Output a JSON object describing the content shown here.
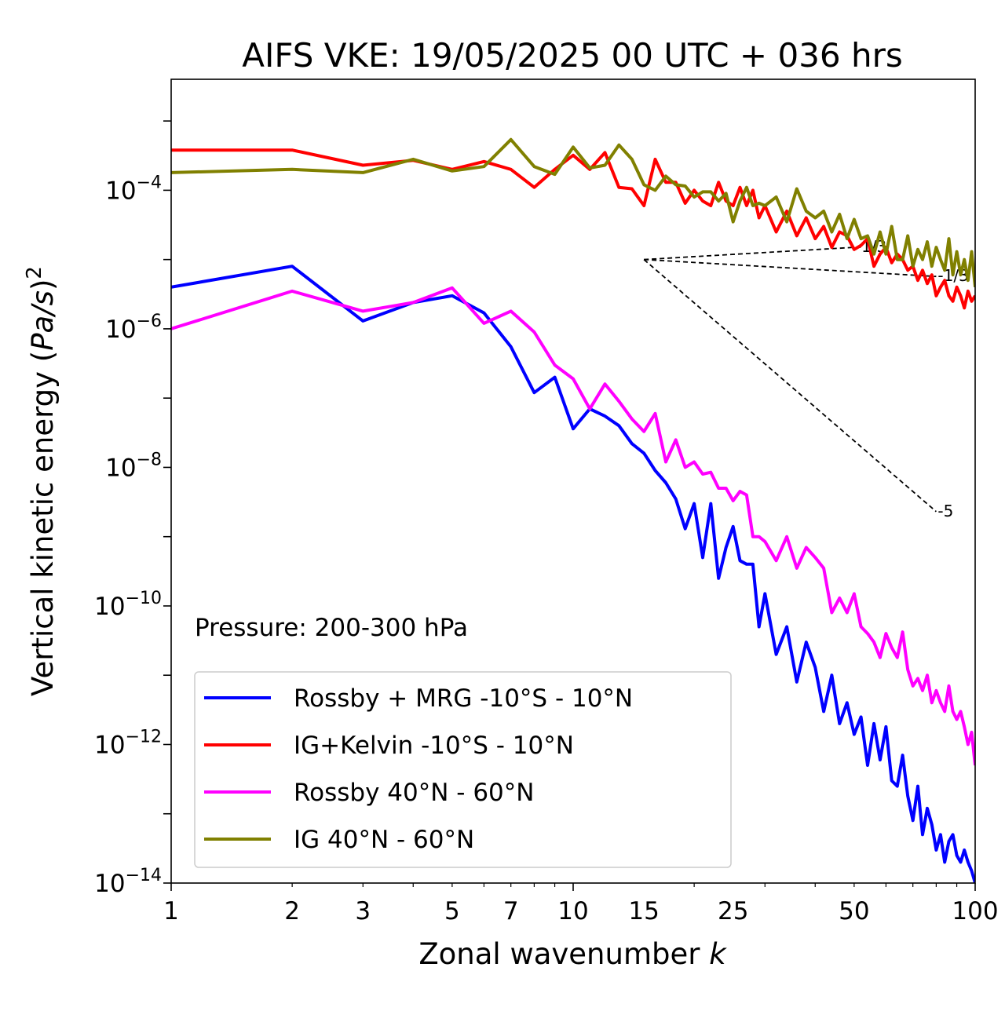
{
  "chart_data": {
    "type": "line",
    "title": "AIFS VKE: 19/05/2025 00 UTC + 036 hrs",
    "xlabel": "Zonal wavenumber k",
    "ylabel": "Vertical kinetic energy (Pa/s)²",
    "xscale": "log",
    "yscale": "log",
    "xlim": [
      1,
      100
    ],
    "ylim": [
      1e-14,
      0.004
    ],
    "xticks": [
      {
        "value": 1,
        "label": "1"
      },
      {
        "value": 2,
        "label": "2"
      },
      {
        "value": 3,
        "label": "3"
      },
      {
        "value": 5,
        "label": "5"
      },
      {
        "value": 7,
        "label": "7"
      },
      {
        "value": 10,
        "label": "10"
      },
      {
        "value": 15,
        "label": "15"
      },
      {
        "value": 25,
        "label": "25"
      },
      {
        "value": 50,
        "label": "50"
      },
      {
        "value": 100,
        "label": "100"
      }
    ],
    "yticks": [
      {
        "value": -4,
        "base": "10",
        "exp": "−4"
      },
      {
        "value": -6,
        "base": "10",
        "exp": "−6"
      },
      {
        "value": -8,
        "base": "10",
        "exp": "−8"
      },
      {
        "value": -10,
        "base": "10",
        "exp": "−10"
      },
      {
        "value": -12,
        "base": "10",
        "exp": "−12"
      },
      {
        "value": -14,
        "base": "10",
        "exp": "−14"
      }
    ],
    "annotation": "Pressure: 200-300 hPa",
    "legend_position": "lower-left",
    "reference_lines": [
      {
        "label": "-1/3",
        "x": [
          15,
          50
        ],
        "y": [
          1e-05,
          1.5e-05
        ]
      },
      {
        "label": "-1/3",
        "x": [
          15,
          80
        ],
        "y": [
          1e-05,
          5.7e-06
        ]
      },
      {
        "label": "-5",
        "x": [
          15,
          80
        ],
        "y": [
          1e-05,
          2.3e-09
        ]
      }
    ],
    "series": [
      {
        "name": "Rossby + MRG -10°S - 10°N",
        "color": "#0000ff",
        "x": [
          1,
          2,
          3,
          4,
          5,
          6,
          7,
          8,
          9,
          10,
          11,
          12,
          13,
          14,
          15,
          16,
          17,
          18,
          19,
          20,
          21,
          22,
          23,
          24,
          25,
          26,
          27,
          28,
          29,
          30,
          32,
          34,
          36,
          38,
          40,
          42,
          44,
          46,
          48,
          50,
          52,
          54,
          56,
          58,
          60,
          62,
          64,
          66,
          68,
          70,
          72,
          74,
          76,
          78,
          80,
          82,
          84,
          86,
          88,
          90,
          92,
          94,
          96,
          98,
          100
        ],
        "y": [
          4e-06,
          8e-06,
          1.3e-06,
          2.4e-06,
          3e-06,
          1.7e-06,
          5.5e-07,
          1.2e-07,
          2e-07,
          3.6e-08,
          7e-08,
          5.5e-08,
          4e-08,
          2.2e-08,
          1.6e-08,
          9e-09,
          6e-09,
          3.5e-09,
          1.3e-09,
          3e-09,
          5e-10,
          3e-09,
          2.5e-10,
          7e-10,
          1.4e-09,
          4.5e-10,
          4e-10,
          4e-10,
          5e-11,
          1.5e-10,
          2e-11,
          5e-11,
          8e-12,
          3e-11,
          1.3e-11,
          3e-12,
          1e-11,
          2e-12,
          4e-12,
          1.4e-12,
          2.5e-12,
          5e-13,
          2e-12,
          6e-13,
          1.8e-12,
          3e-13,
          2.5e-13,
          7e-13,
          1.8e-13,
          8e-14,
          2.5e-13,
          5e-14,
          1.2e-13,
          7e-14,
          3e-14,
          5e-14,
          2e-14,
          4e-14,
          5e-14,
          2.5e-14,
          2e-14,
          3e-14,
          2e-14,
          1.5e-14,
          1e-14
        ]
      },
      {
        "name": "IG+Kelvin -10°S - 10°N",
        "color": "#ff0000",
        "x": [
          1,
          2,
          3,
          4,
          5,
          6,
          7,
          8,
          9,
          10,
          11,
          12,
          13,
          14,
          15,
          16,
          17,
          18,
          19,
          20,
          21,
          22,
          23,
          24,
          25,
          26,
          27,
          28,
          29,
          30,
          32,
          34,
          36,
          38,
          40,
          42,
          44,
          46,
          48,
          50,
          52,
          54,
          56,
          58,
          60,
          62,
          64,
          66,
          68,
          70,
          72,
          74,
          76,
          78,
          80,
          82,
          84,
          86,
          88,
          90,
          92,
          94,
          96,
          98,
          100
        ],
        "y": [
          0.00038,
          0.00038,
          0.00023,
          0.00027,
          0.0002,
          0.00026,
          0.0002,
          0.00011,
          0.0002,
          0.00032,
          0.0002,
          0.00035,
          0.00011,
          0.000105,
          6e-05,
          0.00028,
          0.00013,
          0.00013,
          6.5e-05,
          0.0001,
          7e-05,
          6e-05,
          0.00013,
          7e-05,
          6e-05,
          0.00011,
          6e-05,
          0.0001,
          4e-05,
          6e-05,
          2.5e-05,
          5e-05,
          2.2e-05,
          4e-05,
          2e-05,
          3e-05,
          1.5e-05,
          2.5e-05,
          2.2e-05,
          1.4e-05,
          1.6e-05,
          2e-05,
          8e-06,
          1.2e-05,
          1.5e-05,
          9e-06,
          1.2e-05,
          1e-05,
          7e-06,
          8e-06,
          5e-06,
          7e-06,
          4.5e-06,
          6e-06,
          3e-06,
          4e-06,
          5e-06,
          3e-06,
          2.5e-06,
          4e-06,
          3e-06,
          2e-06,
          3.5e-06,
          2.5e-06,
          3e-06
        ]
      },
      {
        "name": "Rossby 40°N - 60°N",
        "color": "#ff00ff",
        "x": [
          1,
          2,
          3,
          4,
          5,
          6,
          7,
          8,
          9,
          10,
          11,
          12,
          13,
          14,
          15,
          16,
          17,
          18,
          19,
          20,
          21,
          22,
          23,
          24,
          25,
          26,
          27,
          28,
          29,
          30,
          32,
          34,
          36,
          38,
          40,
          42,
          44,
          46,
          48,
          50,
          52,
          54,
          56,
          58,
          60,
          62,
          64,
          66,
          68,
          70,
          72,
          74,
          76,
          78,
          80,
          82,
          84,
          86,
          88,
          90,
          92,
          94,
          96,
          98,
          100
        ],
        "y": [
          1e-06,
          3.5e-06,
          1.8e-06,
          2.4e-06,
          3.9e-06,
          1.2e-06,
          1.8e-06,
          9e-07,
          3e-07,
          1.9e-07,
          7e-08,
          1.6e-07,
          9e-08,
          5e-08,
          3.3e-08,
          6e-08,
          1.2e-08,
          2.5e-08,
          1e-08,
          1.2e-08,
          8e-09,
          8.5e-09,
          5e-09,
          5e-09,
          3.3e-09,
          4.5e-09,
          4e-09,
          1e-09,
          1e-09,
          8.5e-10,
          4.5e-10,
          1e-09,
          3.5e-10,
          7e-10,
          5e-10,
          3.5e-10,
          8e-11,
          1.3e-10,
          8e-11,
          1.5e-10,
          5e-11,
          4e-11,
          3e-11,
          1.8e-11,
          4e-11,
          2.5e-11,
          1.8e-11,
          4.2e-11,
          1.2e-11,
          7e-12,
          9e-12,
          6e-12,
          1e-11,
          4e-12,
          6e-12,
          4e-12,
          3e-12,
          7e-12,
          3e-12,
          2.3e-12,
          3e-12,
          1.8e-12,
          1e-12,
          1.5e-12,
          5e-13
        ]
      },
      {
        "name": "IG 40°N - 60°N",
        "color": "#808000",
        "x": [
          1,
          2,
          3,
          4,
          5,
          6,
          7,
          8,
          9,
          10,
          11,
          12,
          13,
          14,
          15,
          16,
          17,
          18,
          19,
          20,
          21,
          22,
          23,
          24,
          25,
          26,
          27,
          28,
          29,
          30,
          32,
          34,
          36,
          38,
          40,
          42,
          44,
          46,
          48,
          50,
          52,
          54,
          56,
          58,
          60,
          62,
          64,
          66,
          68,
          70,
          72,
          74,
          76,
          78,
          80,
          82,
          84,
          86,
          88,
          90,
          92,
          94,
          96,
          98,
          100
        ],
        "y": [
          0.00018,
          0.0002,
          0.00018,
          0.00028,
          0.00019,
          0.00022,
          0.00054,
          0.00022,
          0.00017,
          0.00042,
          0.00021,
          0.00023,
          0.00045,
          0.00028,
          0.00012,
          0.0001,
          0.00016,
          0.00012,
          0.000115,
          8e-05,
          9.5e-05,
          9.5e-05,
          7e-05,
          9e-05,
          3.5e-05,
          7e-05,
          0.00011,
          6e-05,
          6.5e-05,
          6e-05,
          8e-05,
          3.5e-05,
          0.000105,
          5e-05,
          4e-05,
          5e-05,
          2.5e-05,
          4.5e-05,
          2e-05,
          3.8e-05,
          2e-05,
          2.2e-05,
          1.2e-05,
          2.5e-05,
          1.2e-05,
          3e-05,
          1e-05,
          1e-05,
          2.2e-05,
          8e-06,
          1.4e-05,
          1e-05,
          1.8e-05,
          8e-06,
          1.5e-05,
          1e-05,
          7e-06,
          2e-05,
          6e-06,
          1.3e-05,
          6e-06,
          1e-05,
          5e-06,
          1.3e-05,
          4e-06
        ]
      }
    ]
  }
}
